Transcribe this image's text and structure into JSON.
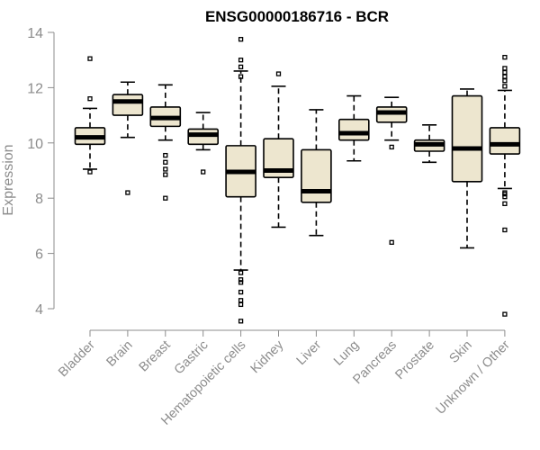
{
  "chart_data": {
    "type": "boxplot",
    "title": "ENSG00000186716 - BCR",
    "xlabel": "",
    "ylabel": "Expression",
    "ylim": [
      3.5,
      14
    ],
    "yticks": [
      4,
      6,
      8,
      10,
      12,
      14
    ],
    "box_fill": "#ede6cf",
    "line_color": "#000000",
    "axis_color": "#8c8c8c",
    "categories": [
      "Bladder",
      "Brain",
      "Breast",
      "Gastric",
      "Hematopoietic cells",
      "Kidney",
      "Liver",
      "Lung",
      "Pancreas",
      "Prostate",
      "Skin",
      "Unknown / Other"
    ],
    "boxes": [
      {
        "name": "Bladder",
        "min": 9.05,
        "q1": 9.95,
        "median": 10.2,
        "q3": 10.55,
        "max": 11.25,
        "outliers": [
          8.95,
          11.6,
          13.05
        ]
      },
      {
        "name": "Brain",
        "min": 10.2,
        "q1": 11.0,
        "median": 11.5,
        "q3": 11.75,
        "max": 12.2,
        "outliers": [
          8.2
        ]
      },
      {
        "name": "Breast",
        "min": 10.1,
        "q1": 10.6,
        "median": 10.9,
        "q3": 11.3,
        "max": 12.1,
        "outliers": [
          9.55,
          9.3,
          9.05,
          8.85,
          8.0
        ]
      },
      {
        "name": "Gastric",
        "min": 9.75,
        "q1": 9.95,
        "median": 10.3,
        "q3": 10.5,
        "max": 11.1,
        "outliers": [
          8.95
        ]
      },
      {
        "name": "Hematopoietic cells",
        "min": 5.4,
        "q1": 8.05,
        "median": 8.95,
        "q3": 9.9,
        "max": 12.6,
        "outliers": [
          13.75,
          13.0,
          12.75,
          12.4,
          5.3,
          5.05,
          4.95,
          4.6,
          4.3,
          4.15,
          3.55
        ]
      },
      {
        "name": "Kidney",
        "min": 6.95,
        "q1": 8.75,
        "median": 9.0,
        "q3": 10.15,
        "max": 12.05,
        "outliers": [
          12.5
        ]
      },
      {
        "name": "Liver",
        "min": 6.65,
        "q1": 7.85,
        "median": 8.25,
        "q3": 9.75,
        "max": 11.2,
        "outliers": []
      },
      {
        "name": "Lung",
        "min": 9.35,
        "q1": 10.1,
        "median": 10.35,
        "q3": 10.85,
        "max": 11.7,
        "outliers": []
      },
      {
        "name": "Pancreas",
        "min": 10.1,
        "q1": 10.75,
        "median": 11.1,
        "q3": 11.3,
        "max": 11.65,
        "outliers": [
          9.85,
          6.4
        ]
      },
      {
        "name": "Prostate",
        "min": 9.3,
        "q1": 9.7,
        "median": 9.95,
        "q3": 10.1,
        "max": 10.65,
        "outliers": []
      },
      {
        "name": "Skin",
        "min": 6.2,
        "q1": 8.6,
        "median": 9.8,
        "q3": 11.7,
        "max": 11.95,
        "outliers": []
      },
      {
        "name": "Unknown / Other",
        "min": 8.35,
        "q1": 9.6,
        "median": 9.95,
        "q3": 10.55,
        "max": 11.9,
        "outliers": [
          13.1,
          12.7,
          12.55,
          12.4,
          12.25,
          12.05,
          8.2,
          8.15,
          8.05,
          7.8,
          6.85,
          3.8
        ]
      }
    ]
  }
}
